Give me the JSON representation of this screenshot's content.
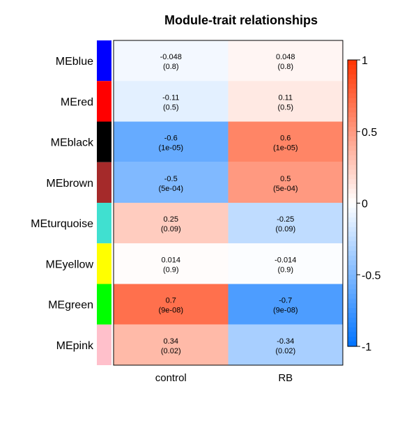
{
  "chart_data": {
    "type": "heatmap",
    "title": "Module-trait relationships",
    "columns": [
      "control",
      "RB"
    ],
    "rows": [
      {
        "name": "MEblue",
        "color": "#0000FF",
        "values": [
          -0.048,
          0.048
        ],
        "labels": [
          "-0.048",
          "0.048"
        ],
        "pvalues": [
          "(0.8)",
          "(0.8)"
        ]
      },
      {
        "name": "MEred",
        "color": "#FF0000",
        "values": [
          -0.11,
          0.11
        ],
        "labels": [
          "-0.11",
          "0.11"
        ],
        "pvalues": [
          "(0.5)",
          "(0.5)"
        ]
      },
      {
        "name": "MEblack",
        "color": "#000000",
        "values": [
          -0.6,
          0.6
        ],
        "labels": [
          "-0.6",
          "0.6"
        ],
        "pvalues": [
          "(1e-05)",
          "(1e-05)"
        ]
      },
      {
        "name": "MEbrown",
        "color": "#A52A2A",
        "values": [
          -0.5,
          0.5
        ],
        "labels": [
          "-0.5",
          "0.5"
        ],
        "pvalues": [
          "(5e-04)",
          "(5e-04)"
        ]
      },
      {
        "name": "MEturquoise",
        "color": "#40E0D0",
        "values": [
          0.25,
          -0.25
        ],
        "labels": [
          "0.25",
          "-0.25"
        ],
        "pvalues": [
          "(0.09)",
          "(0.09)"
        ]
      },
      {
        "name": "MEyellow",
        "color": "#FFFF00",
        "values": [
          0.014,
          -0.014
        ],
        "labels": [
          "0.014",
          "-0.014"
        ],
        "pvalues": [
          "(0.9)",
          "(0.9)"
        ]
      },
      {
        "name": "MEgreen",
        "color": "#00FF00",
        "values": [
          0.7,
          -0.7
        ],
        "labels": [
          "0.7",
          "-0.7"
        ],
        "pvalues": [
          "(9e-08)",
          "(9e-08)"
        ]
      },
      {
        "name": "MEpink",
        "color": "#FFC0CB",
        "values": [
          0.34,
          -0.34
        ],
        "labels": [
          "0.34",
          "-0.34"
        ],
        "pvalues": [
          "(0.02)",
          "(0.02)"
        ]
      }
    ],
    "colorbar": {
      "range": [
        -1,
        1
      ],
      "ticks": [
        1,
        0.5,
        0,
        -0.5,
        -1
      ],
      "tick_labels": [
        "1",
        "0.5",
        "0",
        "-0.5",
        "-1"
      ],
      "low_color": "#0073FF",
      "mid_color": "#FFFFFF",
      "high_color": "#FF3300"
    }
  }
}
